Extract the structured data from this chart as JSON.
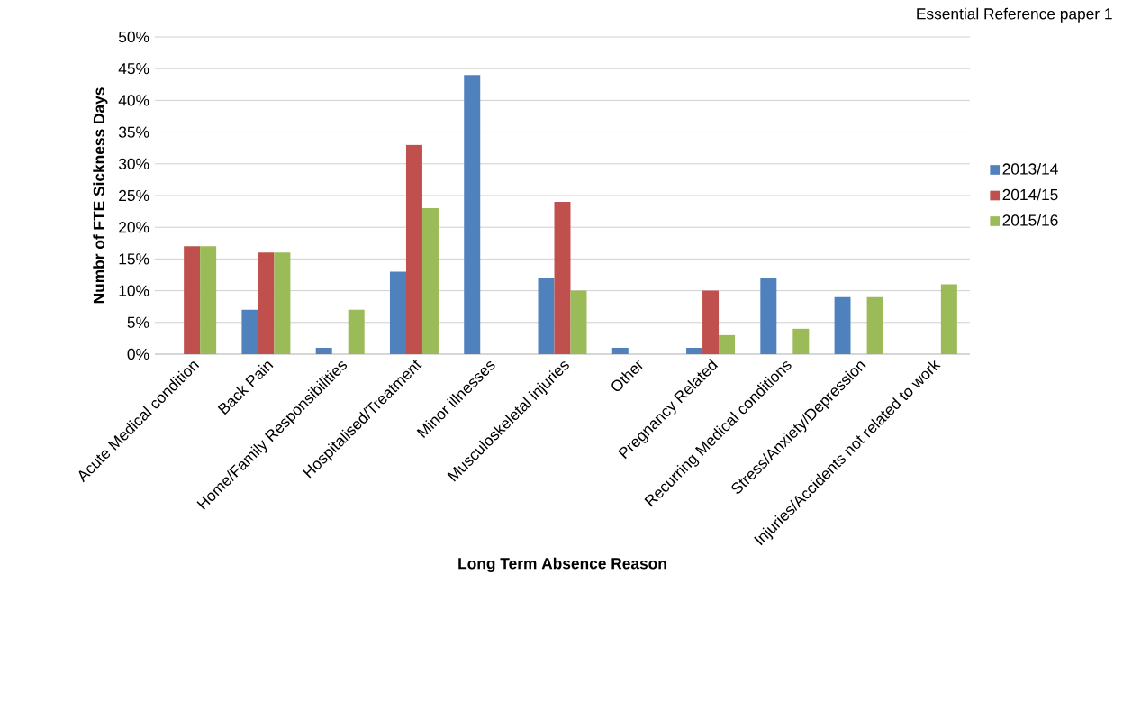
{
  "chart_data": {
    "type": "bar",
    "xlabel": "Long Term Absence Reason",
    "ylabel": "Numbr of FTE Sickness Days",
    "annotations": [
      "Essential Reference paper 1"
    ],
    "categories": [
      "Acute Medical condition",
      "Back Pain",
      "Home/Family Responsibilities",
      "Hospitalised/Treatment",
      "Minor illnesses",
      "Musculoskeletal injuries",
      "Other",
      "Pregnancy Related",
      "Recurring Medical conditions",
      "Stress/Anxiety/Depression",
      "Injuries/Accidents not related to work"
    ],
    "series": [
      {
        "name": "2013/14",
        "color": "#4f81bd",
        "values": [
          null,
          7,
          1,
          13,
          44,
          12,
          1,
          1,
          12,
          9,
          null
        ]
      },
      {
        "name": "2014/15",
        "color": "#c0504d",
        "values": [
          17,
          16,
          null,
          33,
          null,
          24,
          null,
          10,
          null,
          null,
          null
        ]
      },
      {
        "name": "2015/16",
        "color": "#9bbb59",
        "values": [
          17,
          16,
          7,
          23,
          null,
          10,
          null,
          3,
          4,
          9,
          11
        ]
      }
    ],
    "ylim": [
      0,
      50
    ],
    "yticks": [
      {
        "value": 0,
        "label": "0%"
      },
      {
        "value": 5,
        "label": "5%"
      },
      {
        "value": 10,
        "label": "10%"
      },
      {
        "value": 15,
        "label": "15%"
      },
      {
        "value": 20,
        "label": "20%"
      },
      {
        "value": 25,
        "label": "25%"
      },
      {
        "value": 30,
        "label": "30%"
      },
      {
        "value": 35,
        "label": "35%"
      },
      {
        "value": 40,
        "label": "40%"
      },
      {
        "value": 45,
        "label": "45%"
      },
      {
        "value": 50,
        "label": "50%"
      }
    ],
    "grid": "y",
    "legend": "right"
  }
}
